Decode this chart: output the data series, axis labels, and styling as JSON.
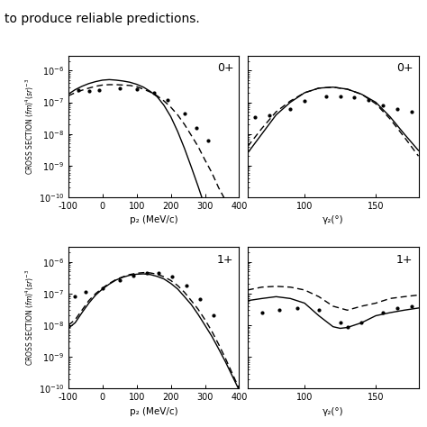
{
  "header_text": "to produce reliable predictions.",
  "panels": [
    {
      "label": "0+",
      "xlabel": "p₂ (MeV/c)",
      "xmin": -100,
      "xmax": 400,
      "xticks": [
        -100,
        0,
        100,
        200,
        300,
        400
      ],
      "xticklabels": [
        "-100",
        "0",
        "100",
        "200",
        "300",
        "400"
      ],
      "ymin": 1e-10,
      "ymax": 3e-06,
      "solid_x": [
        -100,
        -80,
        -60,
        -40,
        -20,
        0,
        20,
        40,
        60,
        80,
        100,
        120,
        140,
        160,
        180,
        200,
        220,
        240,
        260,
        280,
        300,
        320,
        340,
        360,
        380,
        400
      ],
      "solid_y": [
        1.8e-07,
        2.5e-07,
        3.2e-07,
        3.9e-07,
        4.5e-07,
        5e-07,
        5.2e-07,
        5e-07,
        4.7e-07,
        4.3e-07,
        3.7e-07,
        3e-07,
        2.2e-07,
        1.5e-07,
        8e-08,
        3.5e-08,
        1.2e-08,
        3.5e-09,
        9e-10,
        2.2e-10,
        5e-11,
        1.2e-11,
        3e-12,
        7e-13,
        1.7e-13,
        4e-14
      ],
      "dashed_x": [
        -100,
        -80,
        -60,
        -40,
        -20,
        0,
        20,
        40,
        60,
        80,
        100,
        120,
        140,
        160,
        180,
        200,
        220,
        240,
        260,
        280,
        300,
        320,
        340,
        360
      ],
      "dashed_y": [
        1.6e-07,
        2e-07,
        2.4e-07,
        2.8e-07,
        3.2e-07,
        3.5e-07,
        3.6e-07,
        3.6e-07,
        3.5e-07,
        3.4e-07,
        3.1e-07,
        2.6e-07,
        2.1e-07,
        1.6e-07,
        1.1e-07,
        7e-08,
        4e-08,
        2e-08,
        9e-09,
        4e-09,
        1.5e-09,
        6e-10,
        2e-10,
        8e-11
      ],
      "dots_x": [
        -70,
        -40,
        -10,
        50,
        100,
        150,
        190,
        240,
        275,
        310
      ],
      "dots_y": [
        2.5e-07,
        2.3e-07,
        2.5e-07,
        2.7e-07,
        2.6e-07,
        2e-07,
        1.2e-07,
        4.5e-08,
        1.5e-08,
        6e-09
      ]
    },
    {
      "label": "0+",
      "xlabel": "γ₂(°)",
      "xmin": 60,
      "xmax": 180,
      "xticks": [
        100,
        150
      ],
      "xticklabels": [
        "100",
        "150"
      ],
      "ymin": 1e-10,
      "ymax": 3e-06,
      "solid_x": [
        60,
        70,
        80,
        90,
        100,
        110,
        120,
        130,
        140,
        150,
        160,
        170,
        180
      ],
      "solid_y": [
        2.5e-09,
        1e-08,
        4e-08,
        1e-07,
        2e-07,
        2.8e-07,
        3e-07,
        2.6e-07,
        1.8e-07,
        1e-07,
        3.5e-08,
        1e-08,
        3e-09
      ],
      "dashed_x": [
        60,
        70,
        80,
        90,
        100,
        110,
        120,
        130,
        140,
        150,
        160,
        170,
        180
      ],
      "dashed_y": [
        4e-09,
        1.5e-08,
        5e-08,
        1.1e-07,
        2e-07,
        2.8e-07,
        3e-07,
        2.6e-07,
        1.8e-07,
        9e-08,
        3e-08,
        8e-09,
        2e-09
      ],
      "dots_x": [
        65,
        75,
        90,
        100,
        115,
        125,
        135,
        145,
        155,
        165,
        175
      ],
      "dots_y": [
        3.5e-08,
        4e-08,
        6e-08,
        1.1e-07,
        1.5e-07,
        1.5e-07,
        1.4e-07,
        1.2e-07,
        8e-08,
        6e-08,
        5e-08
      ]
    },
    {
      "label": "1+",
      "xlabel": "p₂ (MeV/c)",
      "xmin": -100,
      "xmax": 400,
      "xticks": [
        -100,
        0,
        100,
        200,
        300,
        400
      ],
      "xticklabels": [
        "-100",
        "0",
        "100",
        "200",
        "300",
        "400"
      ],
      "ymin": 1e-10,
      "ymax": 3e-06,
      "solid_x": [
        -100,
        -80,
        -60,
        -40,
        -20,
        0,
        20,
        40,
        60,
        80,
        100,
        120,
        140,
        160,
        180,
        200,
        220,
        240,
        260,
        280,
        300,
        320,
        340,
        360,
        380,
        400
      ],
      "solid_y": [
        8e-09,
        1.2e-08,
        2.5e-08,
        5e-08,
        9e-08,
        1.4e-07,
        2e-07,
        2.7e-07,
        3.3e-07,
        3.8e-07,
        4.1e-07,
        4.2e-07,
        4e-07,
        3.5e-07,
        2.9e-07,
        2.1e-07,
        1.4e-07,
        8e-08,
        4.5e-08,
        2.2e-08,
        1e-08,
        4.5e-09,
        1.8e-09,
        7e-10,
        2.5e-10,
        9e-11
      ],
      "dashed_x": [
        -100,
        -80,
        -60,
        -40,
        -20,
        0,
        20,
        40,
        60,
        80,
        100,
        120,
        140,
        160,
        180,
        200,
        220,
        240,
        260,
        280,
        300,
        320,
        340,
        360,
        380,
        400
      ],
      "dashed_y": [
        1e-08,
        1.5e-08,
        3e-08,
        6e-08,
        1e-07,
        1.5e-07,
        2.1e-07,
        2.8e-07,
        3.4e-07,
        4e-07,
        4.4e-07,
        4.6e-07,
        4.5e-07,
        4.1e-07,
        3.4e-07,
        2.6e-07,
        1.8e-07,
        1.1e-07,
        6e-08,
        3.2e-08,
        1.5e-08,
        6.5e-09,
        2.5e-09,
        9e-10,
        3e-10,
        1e-10
      ],
      "dots_x": [
        -80,
        -50,
        0,
        50,
        90,
        130,
        165,
        205,
        245,
        285,
        325
      ],
      "dots_y": [
        8e-08,
        1.1e-07,
        1.5e-07,
        2.7e-07,
        3.8e-07,
        4.5e-07,
        4.5e-07,
        3.5e-07,
        1.8e-07,
        6.5e-08,
        2e-08
      ]
    },
    {
      "label": "1+",
      "xlabel": "γ₂(°)",
      "xmin": 60,
      "xmax": 180,
      "xticks": [
        100,
        150
      ],
      "xticklabels": [
        "100",
        "150"
      ],
      "ymin": 1e-10,
      "ymax": 3e-06,
      "solid_x": [
        60,
        70,
        80,
        90,
        100,
        110,
        120,
        125,
        130,
        140,
        150,
        160,
        170,
        180
      ],
      "solid_y": [
        6e-08,
        7e-08,
        8e-08,
        7e-08,
        5e-08,
        2e-08,
        9e-09,
        8e-09,
        8.5e-09,
        1.2e-08,
        2e-08,
        2.5e-08,
        3e-08,
        3.5e-08
      ],
      "dashed_x": [
        60,
        70,
        80,
        90,
        100,
        110,
        120,
        130,
        140,
        150,
        160,
        170,
        180
      ],
      "dashed_y": [
        1.3e-07,
        1.6e-07,
        1.7e-07,
        1.6e-07,
        1.3e-07,
        8e-08,
        4e-08,
        3e-08,
        4e-08,
        5e-08,
        7e-08,
        8e-08,
        9e-08
      ],
      "dots_x": [
        70,
        82,
        95,
        110,
        125,
        130,
        140,
        155,
        165,
        175
      ],
      "dots_y": [
        2.5e-08,
        3e-08,
        3.5e-08,
        3e-08,
        1.2e-08,
        9e-09,
        1.2e-08,
        2.5e-08,
        3.5e-08,
        4e-08
      ]
    }
  ],
  "ylabel": "CROSS SECTION (fm)$^4$(sr)$^{-3}$",
  "bg_color": "#f0f0f0",
  "line_color": "#000000",
  "header_fontsize": 10,
  "tick_fontsize": 7,
  "label_fontsize": 7.5
}
